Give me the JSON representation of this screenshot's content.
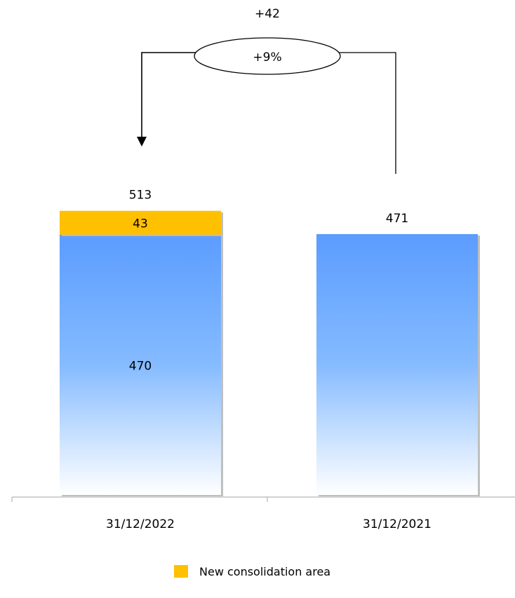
{
  "chart_data": {
    "type": "bar",
    "stacked": true,
    "categories": [
      "31/12/2022",
      "31/12/2021"
    ],
    "series": [
      {
        "key": "base",
        "values": [
          470,
          471
        ],
        "color_top": "#5b9cff",
        "color_bottom": "#ffffff"
      },
      {
        "key": "new",
        "name": "New consolidation area",
        "values": [
          43,
          0
        ],
        "color": "#ffc000"
      }
    ],
    "totals": [
      513,
      471
    ],
    "segment_labels": [
      [
        "470",
        "43"
      ],
      [
        "",
        ""
      ]
    ],
    "total_labels": [
      "513",
      "471"
    ],
    "bridge": {
      "delta": "+42",
      "pct": "+9%",
      "from": "31/12/2021",
      "to": "31/12/2022"
    },
    "legend": [
      {
        "label": "New consolidation area",
        "color": "#ffc000"
      }
    ],
    "legend_position": "bottom"
  }
}
